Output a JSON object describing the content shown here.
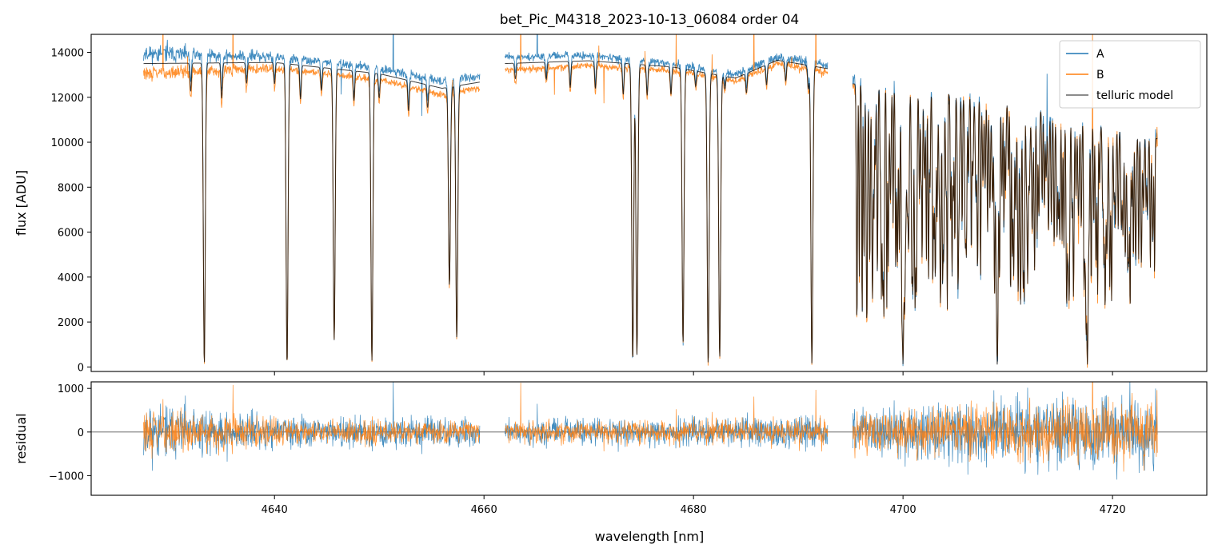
{
  "chart_data": {
    "type": "line",
    "title": "bet_Pic_M4318_2023-10-13_06084  order 04",
    "xlabel": "wavelength [nm]",
    "xlim": [
      4622.5,
      4729.0
    ],
    "xticks": [
      4640,
      4660,
      4680,
      4700,
      4720
    ],
    "colors": {
      "A": "#1f77b4",
      "B": "#ff7f0e",
      "model": "#000000"
    },
    "legend_position": "top-right",
    "segments": [
      [
        4627.5,
        4659.6
      ],
      [
        4662.0,
        4692.8
      ],
      [
        4695.2,
        4724.3
      ]
    ],
    "top_panel": {
      "ylabel": "flux [ADU]",
      "ylim": [
        -200,
        14800
      ],
      "yticks": [
        0,
        2000,
        4000,
        6000,
        8000,
        10000,
        12000,
        14000
      ],
      "series": [
        {
          "name": "A",
          "color": "#1f77b4"
        },
        {
          "name": "B",
          "color": "#ff7f0e"
        },
        {
          "name": "telluric model",
          "color": "#000000"
        }
      ],
      "continuum": {
        "A": [
          [
            4627.5,
            13950
          ],
          [
            4640,
            13800
          ],
          [
            4650,
            13300
          ],
          [
            4656,
            12700
          ],
          [
            4659.6,
            12950
          ],
          [
            4662,
            13800
          ],
          [
            4670,
            13850
          ],
          [
            4678,
            13500
          ],
          [
            4684,
            13000
          ],
          [
            4688,
            13800
          ],
          [
            4692.8,
            13450
          ],
          [
            4695.2,
            12700
          ],
          [
            4700,
            12500
          ],
          [
            4710,
            11800
          ],
          [
            4724.3,
            10200
          ]
        ],
        "B": [
          [
            4627.5,
            13050
          ],
          [
            4640,
            13300
          ],
          [
            4650,
            12800
          ],
          [
            4656,
            12100
          ],
          [
            4659.6,
            12400
          ],
          [
            4662,
            13200
          ],
          [
            4670,
            13400
          ],
          [
            4678,
            13200
          ],
          [
            4684,
            12700
          ],
          [
            4688,
            13500
          ],
          [
            4692.8,
            13100
          ],
          [
            4695.2,
            12500
          ],
          [
            4700,
            12300
          ],
          [
            4710,
            11700
          ],
          [
            4724.3,
            10100
          ]
        ]
      },
      "absorption_lines": [
        [
          4633.3,
          0.99
        ],
        [
          4641.2,
          0.99
        ],
        [
          4645.7,
          0.91
        ],
        [
          4649.3,
          0.98
        ],
        [
          4656.7,
          0.71
        ],
        [
          4657.4,
          0.89
        ],
        [
          4674.2,
          0.98
        ],
        [
          4674.6,
          0.96
        ],
        [
          4679.0,
          0.92
        ],
        [
          4681.4,
          0.99
        ],
        [
          4682.5,
          0.97
        ],
        [
          4691.3,
          0.99
        ],
        [
          4700.0,
          0.99
        ],
        [
          4709.0,
          0.99
        ],
        [
          4717.6,
          0.99
        ]
      ]
    },
    "bottom_panel": {
      "ylabel": "residual",
      "ylim": [
        -1450,
        1150
      ],
      "yticks": [
        -1000,
        0,
        1000
      ],
      "residual_std": {
        "A": [
          [
            4627.5,
            420
          ],
          [
            4635,
            380
          ],
          [
            4642,
            240
          ],
          [
            4659.6,
            230
          ],
          [
            4662,
            200
          ],
          [
            4680,
            240
          ],
          [
            4692.8,
            260
          ],
          [
            4695.2,
            380
          ],
          [
            4710,
            520
          ],
          [
            4724.3,
            620
          ]
        ],
        "B": [
          [
            4627.5,
            330
          ],
          [
            4635,
            300
          ],
          [
            4642,
            200
          ],
          [
            4659.6,
            190
          ],
          [
            4662,
            160
          ],
          [
            4680,
            200
          ],
          [
            4692.8,
            220
          ],
          [
            4695.2,
            330
          ],
          [
            4710,
            460
          ],
          [
            4724.3,
            560
          ]
        ]
      }
    }
  }
}
